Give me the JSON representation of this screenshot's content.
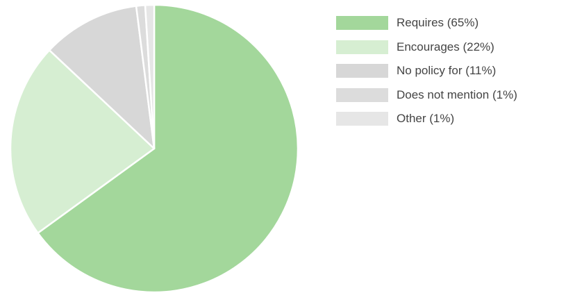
{
  "chart_data": {
    "type": "pie",
    "title": "",
    "start": "top",
    "direction": "clockwise",
    "legend_position": "right",
    "slices": [
      {
        "label": "Requires (65%)",
        "value": 65,
        "color": "#a3d79b"
      },
      {
        "label": "Encourages (22%)",
        "value": 22,
        "color": "#d6eed2"
      },
      {
        "label": "No policy for (11%)",
        "value": 11,
        "color": "#d7d7d7"
      },
      {
        "label": "Does not mention (1%)",
        "value": 1,
        "color": "#dcdcdc"
      },
      {
        "label": "Other (1%)",
        "value": 1,
        "color": "#e6e6e6"
      }
    ],
    "slice_border_color": "#ffffff"
  }
}
